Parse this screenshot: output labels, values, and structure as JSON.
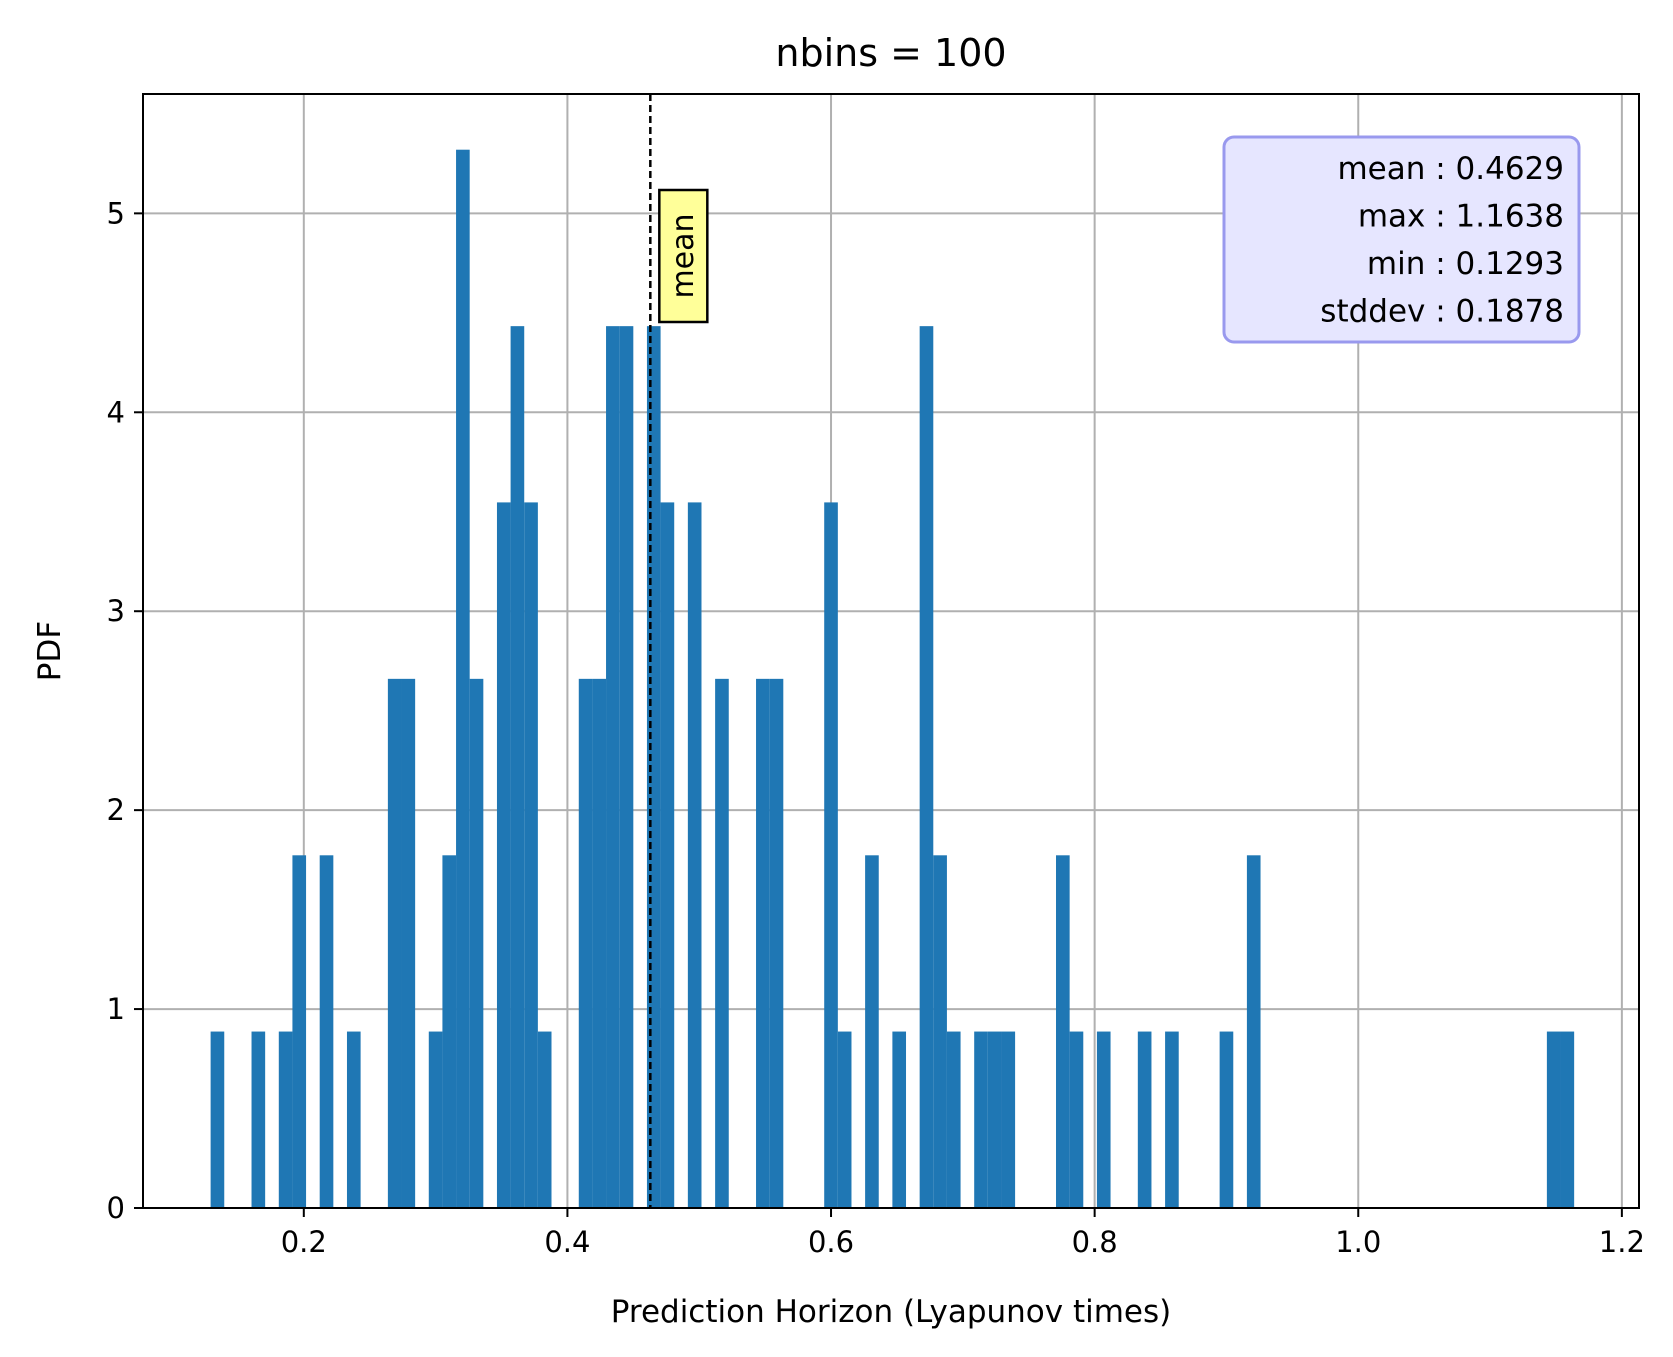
{
  "chart_data": {
    "type": "bar",
    "title": "nbins = 100",
    "xlabel": "Prediction Horizon (Lyapunov times)",
    "ylabel": "PDF",
    "xlim": [
      0.078,
      1.213
    ],
    "ylim": [
      0,
      5.6
    ],
    "xticks": [
      0.2,
      0.4,
      0.6,
      0.8,
      1.0,
      1.2
    ],
    "xtick_labels": [
      "0.2",
      "0.4",
      "0.6",
      "0.8",
      "1.0",
      "1.2"
    ],
    "yticks": [
      0,
      1,
      2,
      3,
      4,
      5
    ],
    "ytick_labels": [
      "0",
      "1",
      "2",
      "3",
      "4",
      "5"
    ],
    "grid": true,
    "bar_color": "#1f77b4",
    "bin_start": 0.1293,
    "bin_width": 0.010345,
    "values": [
      0.887,
      0,
      0,
      0.887,
      0,
      0.887,
      1.773,
      0,
      1.773,
      0,
      0.887,
      0,
      0,
      2.66,
      2.66,
      0,
      0.887,
      1.773,
      5.32,
      2.66,
      0,
      3.547,
      4.433,
      3.547,
      0.887,
      0,
      0,
      2.66,
      2.66,
      4.433,
      4.433,
      0,
      4.433,
      3.547,
      0,
      3.547,
      0,
      2.66,
      0,
      0,
      2.66,
      2.66,
      0,
      0,
      0,
      3.547,
      0.887,
      0,
      1.773,
      0,
      0.887,
      0,
      4.433,
      1.773,
      0.887,
      0,
      0.887,
      0.887,
      0.887,
      0,
      0,
      0,
      1.773,
      0.887,
      0,
      0.887,
      0,
      0,
      0.887,
      0,
      0.887,
      0,
      0,
      0,
      0.887,
      0,
      1.773,
      0,
      0,
      0,
      0,
      0,
      0,
      0,
      0,
      0,
      0,
      0,
      0,
      0,
      0,
      0,
      0,
      0,
      0,
      0,
      0,
      0,
      0.887,
      0.887
    ],
    "annotations": {
      "mean_line_x": 0.4629,
      "mean_label": "mean",
      "mean_label_color": "#ffff99",
      "stats_box_color": "#e6e6ff",
      "stats_box_border": "#9999ee",
      "stats_lines": [
        "mean : 0.4629",
        "max : 1.1638",
        "min : 0.1293",
        "stddev : 0.1878"
      ]
    }
  }
}
